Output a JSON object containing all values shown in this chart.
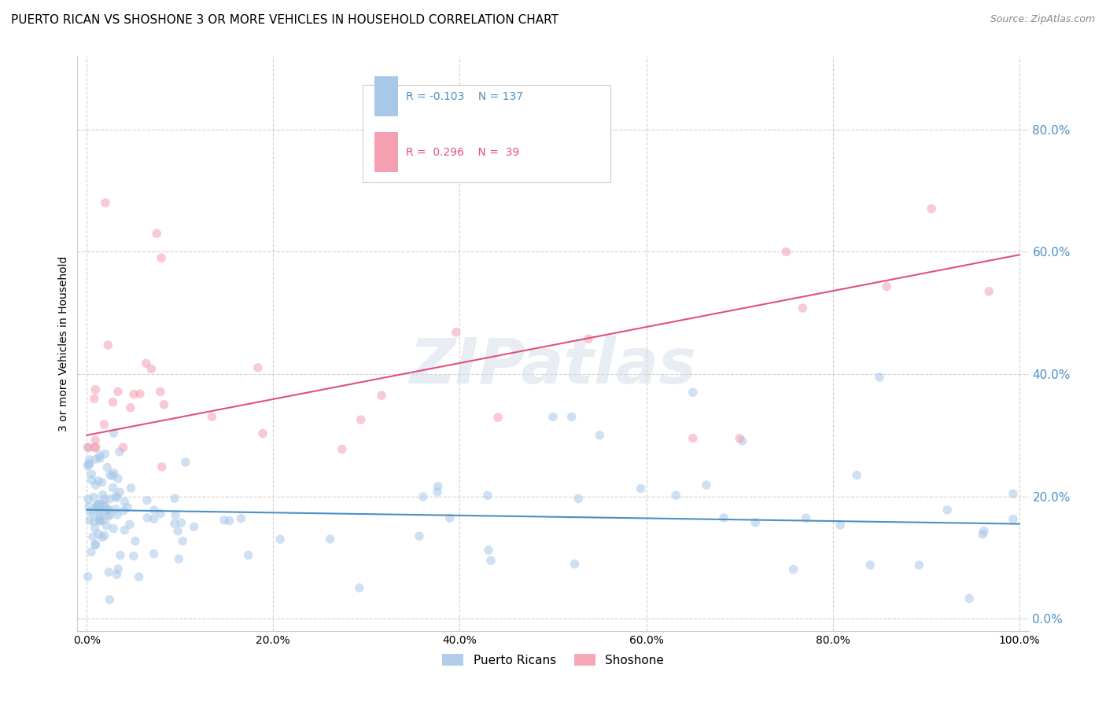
{
  "title": "PUERTO RICAN VS SHOSHONE 3 OR MORE VEHICLES IN HOUSEHOLD CORRELATION CHART",
  "source": "Source: ZipAtlas.com",
  "ylabel": "3 or more Vehicles in Household",
  "watermark": "ZIPatlas",
  "legend_blue_r": "-0.103",
  "legend_blue_n": "137",
  "legend_pink_r": " 0.296",
  "legend_pink_n": " 39",
  "blue_color": "#a8c8e8",
  "pink_color": "#f4a0b0",
  "blue_line_color": "#4a90c4",
  "pink_line_color": "#e05080",
  "grid_color": "#cccccc",
  "background_color": "#ffffff",
  "right_axis_color": "#4a90c4",
  "xlim": [
    -0.01,
    1.01
  ],
  "ylim": [
    -0.02,
    0.92
  ],
  "xtick_positions": [
    0.0,
    0.2,
    0.4,
    0.6,
    0.8,
    1.0
  ],
  "xticklabels": [
    "0.0%",
    "20.0%",
    "40.0%",
    "60.0%",
    "80.0%",
    "100.0%"
  ],
  "ytick_positions": [
    0.0,
    0.2,
    0.4,
    0.6,
    0.8
  ],
  "yticklabels": [
    "0.0%",
    "20.0%",
    "40.0%",
    "60.0%",
    "80.0%"
  ],
  "marker_size": 70,
  "alpha": 0.55,
  "blue_line_y0": 0.178,
  "blue_line_y1": 0.155,
  "pink_line_y0": 0.3,
  "pink_line_y1": 0.595
}
